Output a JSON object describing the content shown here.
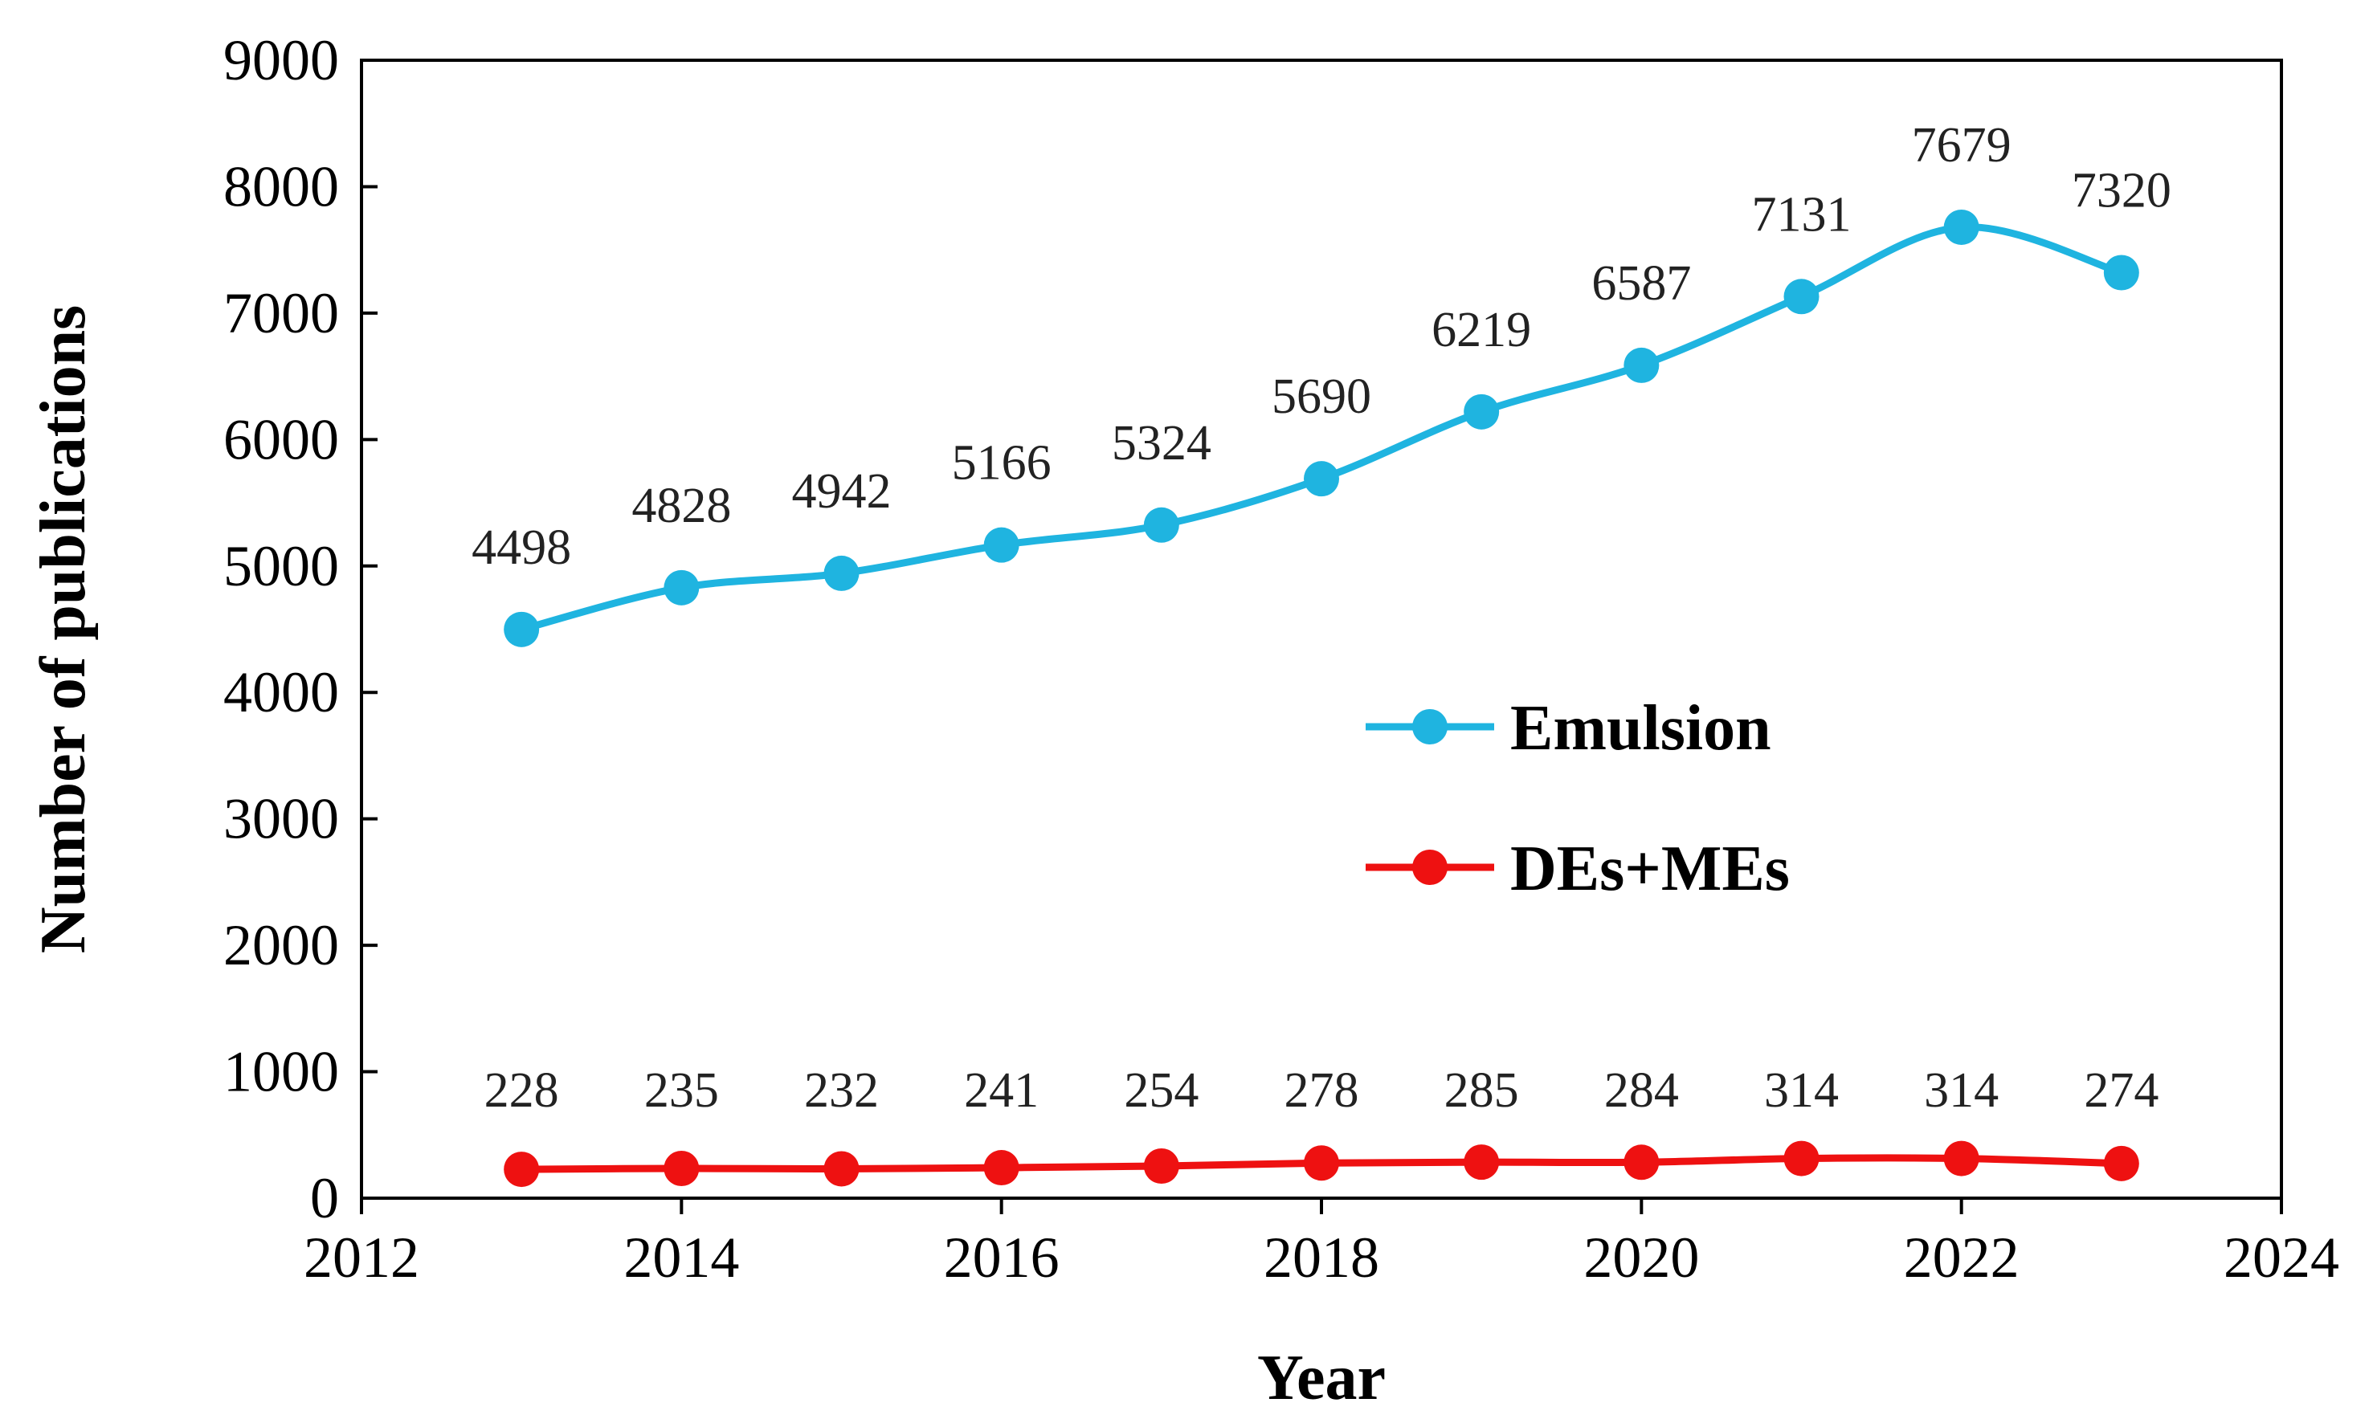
{
  "chart_data": {
    "type": "line",
    "title": "",
    "xlabel": "Year",
    "ylabel": "Number of publications",
    "xlim": [
      2012,
      2024
    ],
    "ylim": [
      0,
      9000
    ],
    "xticks": [
      2012,
      2014,
      2016,
      2018,
      2020,
      2022,
      2024
    ],
    "yticks": [
      0,
      1000,
      2000,
      3000,
      4000,
      5000,
      6000,
      7000,
      8000,
      9000
    ],
    "grid": false,
    "legend_position": "center-right",
    "x": [
      2013,
      2014,
      2015,
      2016,
      2017,
      2018,
      2019,
      2020,
      2021,
      2022,
      2023
    ],
    "series": [
      {
        "name": "Emulsion",
        "color": "#1FB4E0",
        "values": [
          4498,
          4828,
          4942,
          5166,
          5324,
          5690,
          6219,
          6587,
          7131,
          7679,
          7320
        ]
      },
      {
        "name": "DEs+MEs",
        "color": "#EE1111",
        "values": [
          228,
          235,
          232,
          241,
          254,
          278,
          285,
          284,
          314,
          314,
          274
        ]
      }
    ]
  }
}
